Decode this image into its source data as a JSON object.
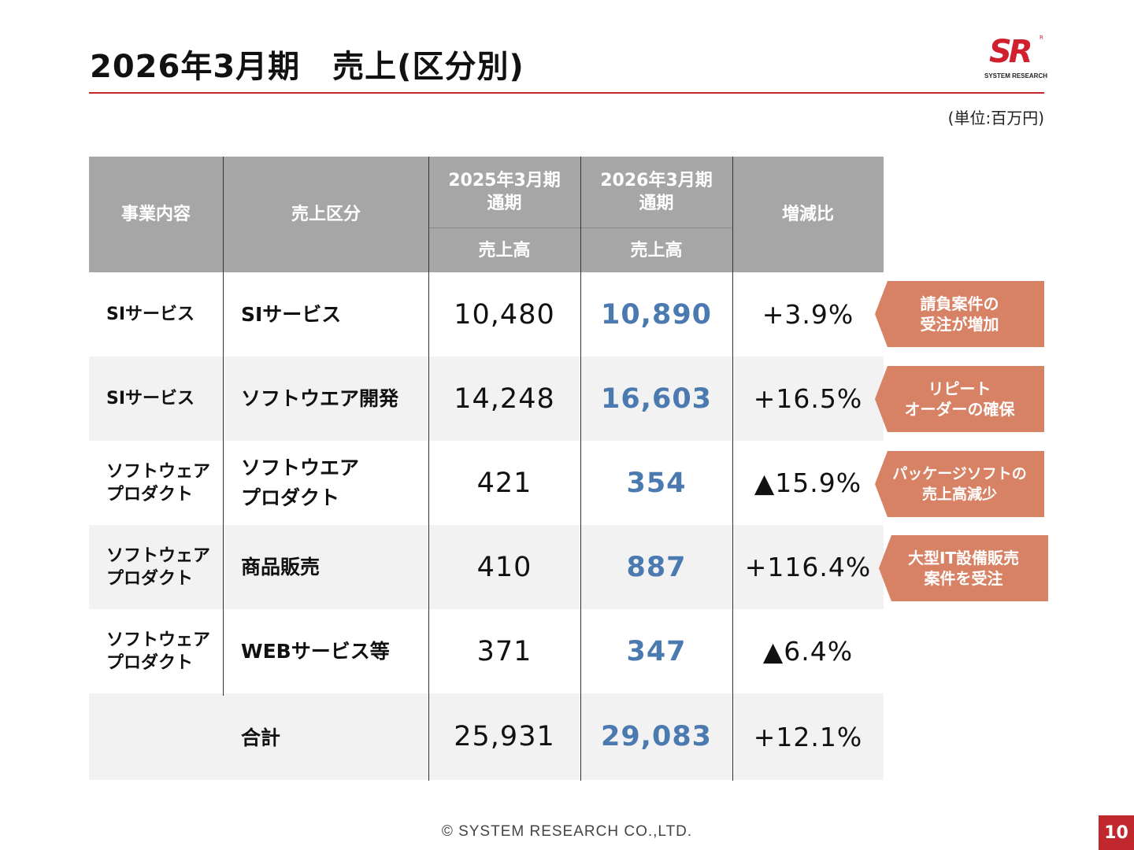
{
  "title": "2026年3月期　売上(区分別)",
  "logo": {
    "mark": "SR",
    "reg": "R",
    "name": "SYSTEM RESEARCH"
  },
  "unit": "(単位:百万円)",
  "headers": {
    "business": "事業内容",
    "category": "売上区分",
    "prev_period": "2025年3月期\n通期",
    "cur_period": "2026年3月期\n通期",
    "prev_sub": "売上高",
    "cur_sub": "売上高",
    "change": "増減比"
  },
  "rows": [
    {
      "business": "SIサービス",
      "category": "SIサービス",
      "prev": "10,480",
      "cur": "10,890",
      "change": "+3.9%",
      "note": "請負案件の\n受注が増加"
    },
    {
      "business": "SIサービス",
      "category": "ソフトウエア開発",
      "prev": "14,248",
      "cur": "16,603",
      "change": "+16.5%",
      "note": "リピート\nオーダーの確保"
    },
    {
      "business": "ソフトウェア\nプロダクト",
      "category": "ソフトウエア\nプロダクト",
      "prev": "421",
      "cur": "354",
      "change": "▲15.9%",
      "note": "パッケージソフトの\n売上高減少"
    },
    {
      "business": "ソフトウェア\nプロダクト",
      "category": "商品販売",
      "prev": "410",
      "cur": "887",
      "change": "+116.4%",
      "note": "大型IT設備販売\n案件を受注"
    },
    {
      "business": "ソフトウェア\nプロダクト",
      "category": "WEBサービス等",
      "prev": "371",
      "cur": "347",
      "change": "▲6.4%",
      "note": ""
    }
  ],
  "total": {
    "label": "合計",
    "prev": "25,931",
    "cur": "29,083",
    "change": "+12.1%"
  },
  "footer": "© SYSTEM RESEARCH CO.,LTD.",
  "page_number": "10",
  "colors": {
    "accent_red": "#c0282d",
    "header_gray": "#a6a6a6",
    "current_blue": "#4a7ab0",
    "note_orange": "#d88265",
    "alt_row": "#f2f2f2"
  }
}
